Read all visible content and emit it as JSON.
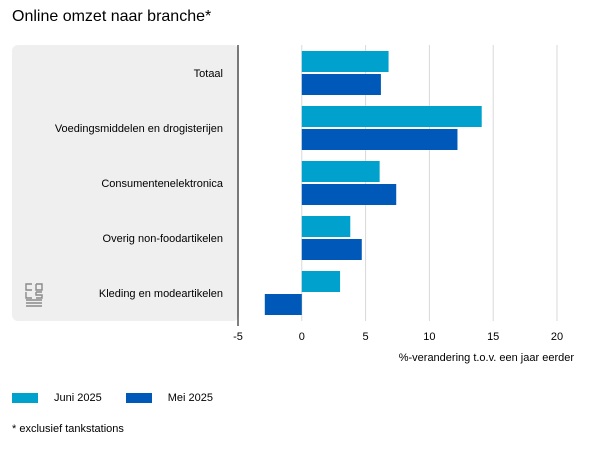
{
  "title": "Online omzet naar branche*",
  "footnote": "* exclusief tankstations",
  "colors": {
    "juni": "#00a1cd",
    "mei": "#0058b8",
    "panel": "#efefef",
    "grid": "#d9d9d9",
    "axis": "#000000"
  },
  "logo_icon": "cbs-logo-icon",
  "chart_data": {
    "type": "bar",
    "orientation": "horizontal",
    "categories": [
      "Totaal",
      "Voedingsmiddelen en drogisterijen",
      "Consumentenelektronica",
      "Overig non-foodartikelen",
      "Kleding en modeartikelen"
    ],
    "series": [
      {
        "name": "Juni 2025",
        "values": [
          6.8,
          14.1,
          6.1,
          3.8,
          3.0
        ]
      },
      {
        "name": "Mei 2025",
        "values": [
          6.2,
          12.2,
          7.4,
          4.7,
          -2.9
        ]
      }
    ],
    "xlabel": "%-verandering t.o.v. een jaar eerder",
    "xlim": [
      -5,
      20
    ],
    "xticks": [
      -5,
      0,
      5,
      10,
      15,
      20
    ],
    "grid": true,
    "legend_position": "bottom-left"
  }
}
